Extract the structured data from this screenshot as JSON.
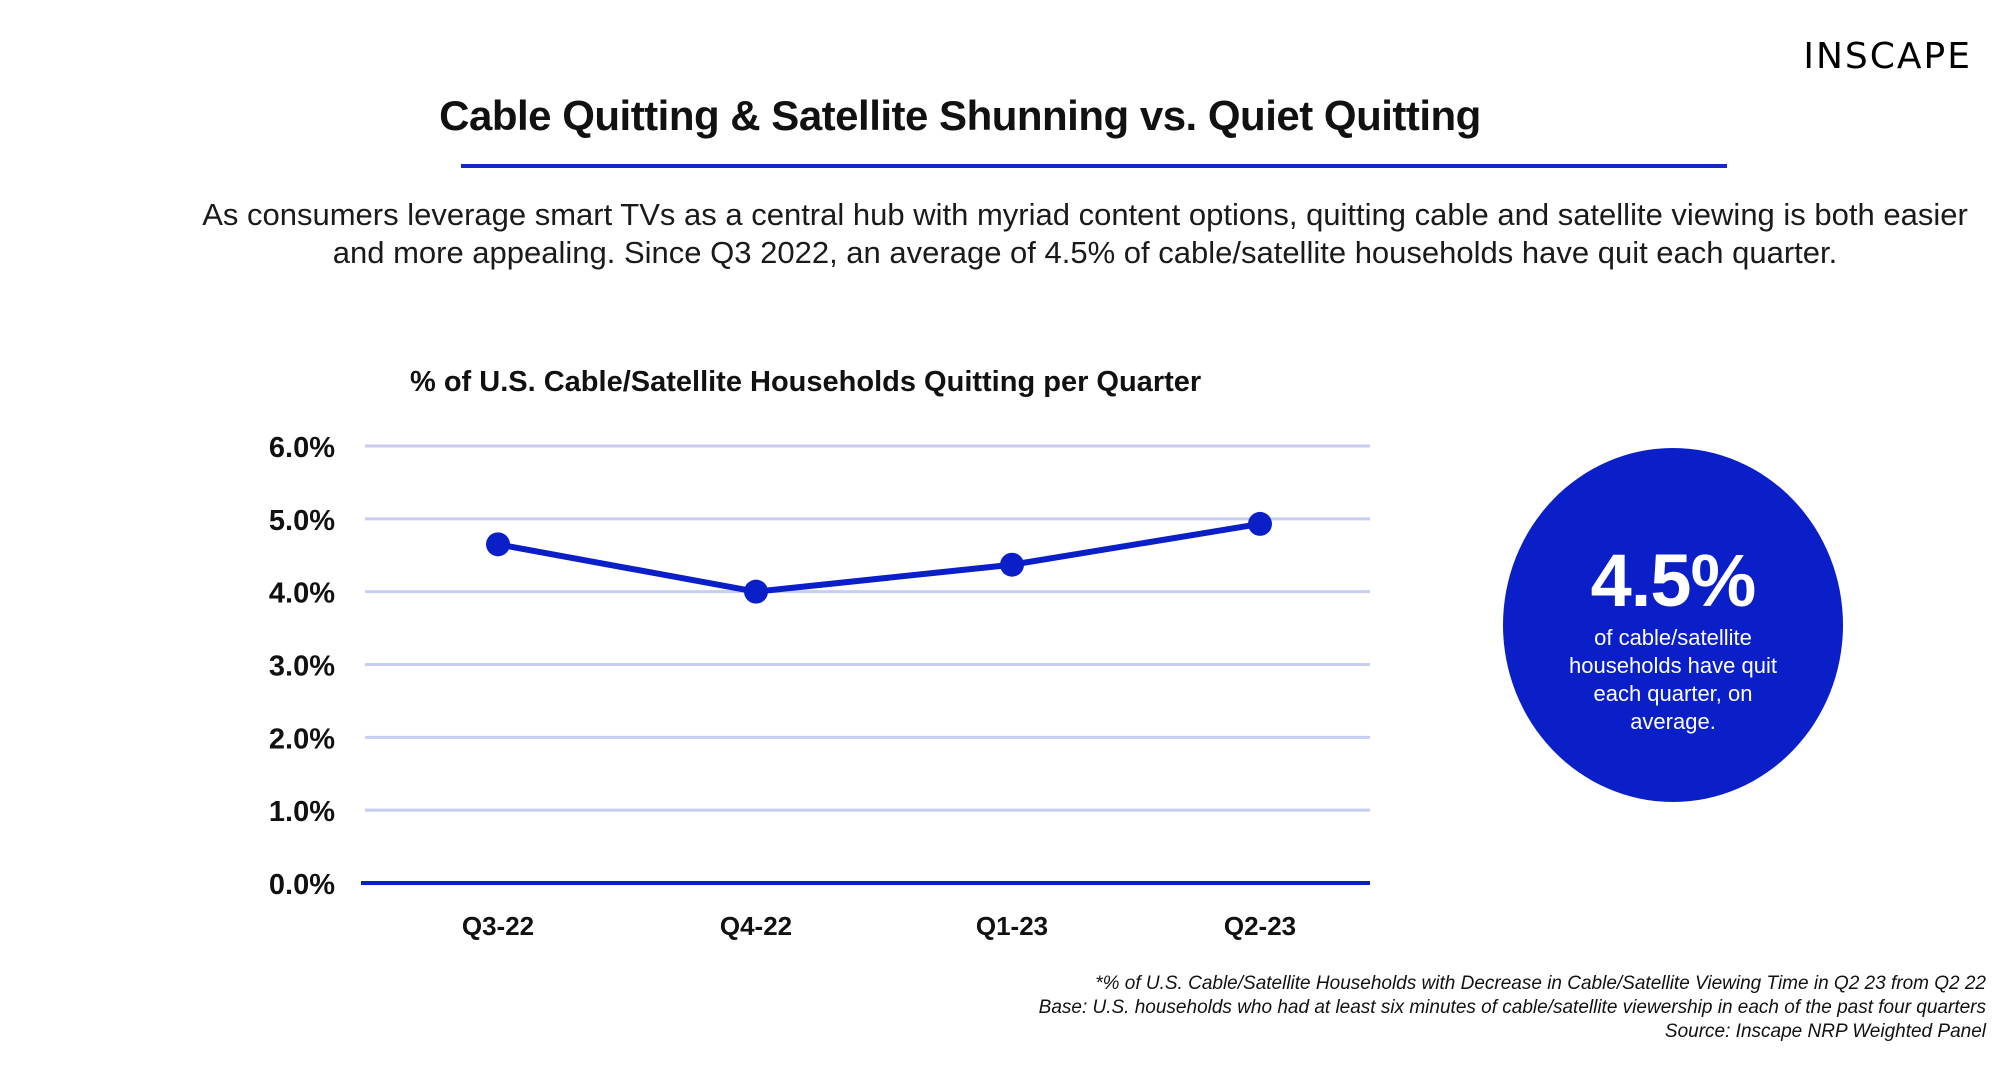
{
  "brand": {
    "logo_text": "INSCAPE"
  },
  "header": {
    "title": "Cable Quitting & Satellite Shunning  vs. Quiet Quitting",
    "intro": "As consumers leverage smart TVs as a central hub with myriad content options, quitting cable and satellite viewing is both easier and more appealing. Since Q3 2022, an average of 4.5% of cable/satellite households have quit each quarter."
  },
  "colors": {
    "accent": "#0a1fc8",
    "line": "#0a1fc8",
    "gridline": "#c8cef0",
    "rule": "#1428c8"
  },
  "chart_data": {
    "type": "line",
    "title": "% of U.S. Cable/Satellite Households Quitting per Quarter",
    "categories": [
      "Q3-22",
      "Q4-22",
      "Q1-23",
      "Q2-23"
    ],
    "series": [
      {
        "values": [
          4.65,
          4.0,
          4.37,
          4.93
        ]
      }
    ],
    "ylim": [
      0,
      6
    ],
    "yticks": [
      0,
      1,
      2,
      3,
      4,
      5,
      6
    ],
    "ytick_labels": [
      "0.0%",
      "1.0%",
      "2.0%",
      "3.0%",
      "4.0%",
      "5.0%",
      "6.0%"
    ],
    "grid": true,
    "legend": "none"
  },
  "callout": {
    "value": "4.5%",
    "text": "of cable/satellite households have quit each quarter, on average."
  },
  "footnotes": [
    "*% of U.S. Cable/Satellite Households with Decrease in Cable/Satellite Viewing Time in Q2 23 from Q2 22",
    "Base: U.S. households who had at least six minutes of cable/satellite viewership in each of the past four quarters",
    "Source: Inscape NRP Weighted Panel"
  ]
}
